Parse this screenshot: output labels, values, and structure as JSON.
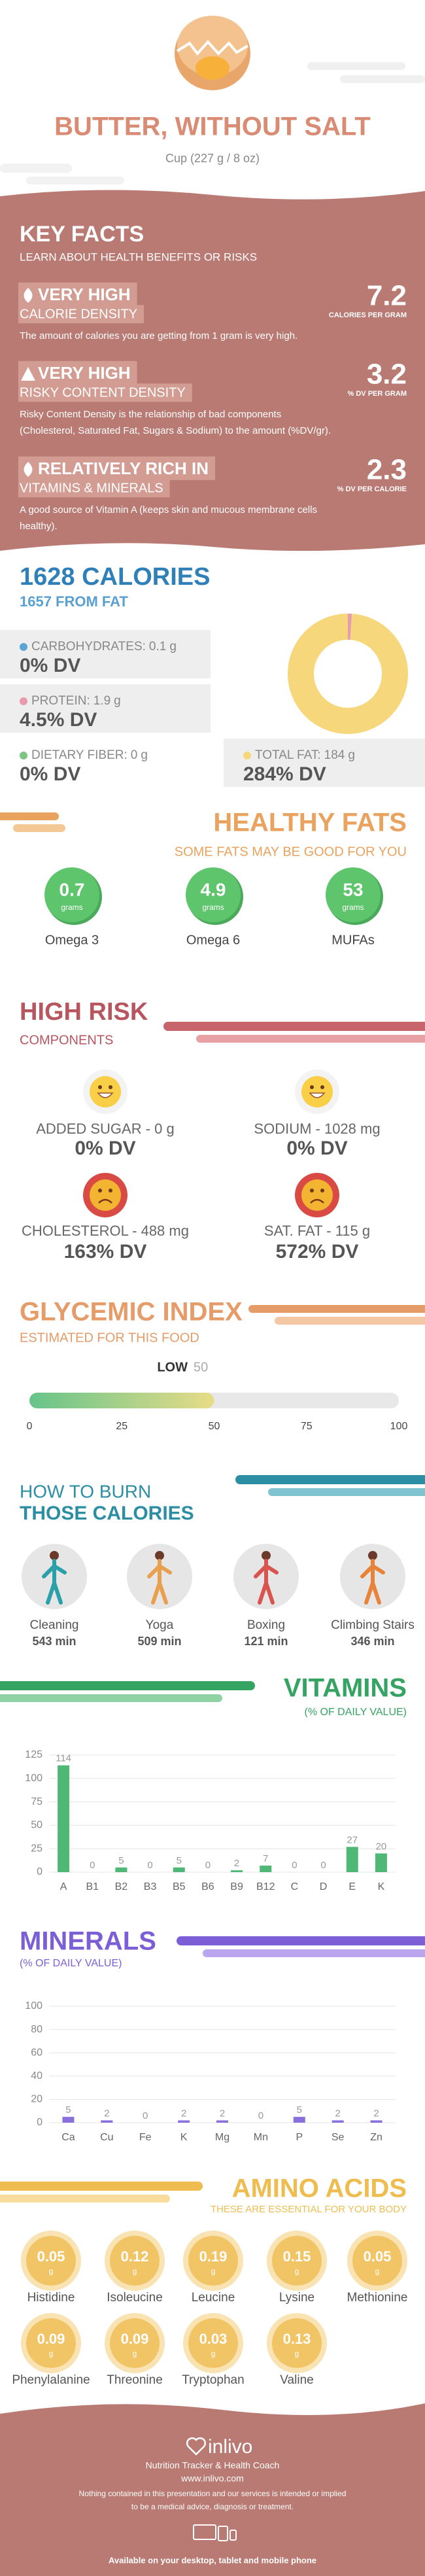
{
  "header": {
    "title": "BUTTER, WITHOUT SALT",
    "serving": "Cup (227 g / 8 oz)"
  },
  "key_facts": {
    "title": "KEY FACTS",
    "subtitle": "LEARN ABOUT HEALTH BENEFITS OR RISKS",
    "facts": [
      {
        "level": "VERY HIGH",
        "name": "CALORIE DENSITY",
        "value": 7.2,
        "unit": "CALORIES PER GRAM",
        "description": [
          "The amount of calories you are getting from 1 gram is very high."
        ]
      },
      {
        "level": "VERY HIGH",
        "name": "RISKY CONTENT DENSITY",
        "value": 3.2,
        "unit": "% DV PER GRAM",
        "description": [
          "Risky Content Density is the relationship of bad components",
          "(Cholesterol, Saturated Fat, Sugars & Sodium) to the amount (%DV/gr)."
        ]
      },
      {
        "level": "RELATIVELY RICH IN",
        "name": "VITAMINS & MINERALS",
        "value": 2.3,
        "unit": "% DV PER CALORIE",
        "description": [
          "A good source of Vitamin A (keeps skin and mucous membrane cells",
          "healthy)."
        ]
      }
    ]
  },
  "calories": {
    "title": "1628 CALORIES",
    "subtitle": "1657 FROM FAT",
    "nutrients": [
      {
        "label": "CARBOHYDRATES:",
        "amount": 0.1,
        "unit": "g",
        "dv": "0% DV",
        "color": "#5ba4d6"
      },
      {
        "label": "PROTEIN:",
        "amount": 1.9,
        "unit": "g",
        "dv": "4.5% DV",
        "color": "#e99aab"
      },
      {
        "label": "DIETARY FIBER:",
        "amount": 0,
        "unit": "g",
        "dv": "0% DV",
        "color": "#7cc582"
      },
      {
        "label": "TOTAL FAT:",
        "amount": 184,
        "unit": "g",
        "dv": "284% DV",
        "color": "#f6d77c"
      }
    ]
  },
  "healthy_fats": {
    "title": "HEALTHY FATS",
    "subtitle": "SOME FATS MAY BE GOOD FOR YOU",
    "items": [
      {
        "name": "Omega 3",
        "value": 0.7,
        "unit": "grams"
      },
      {
        "name": "Omega 6",
        "value": 4.9,
        "unit": "grams"
      },
      {
        "name": "MUFAs",
        "value": 53,
        "unit": "grams"
      }
    ]
  },
  "high_risk": {
    "title": "HIGH RISK",
    "subtitle": "COMPONENTS",
    "items": [
      {
        "name": "ADDED SUGAR - 0 g",
        "dv": "0% DV",
        "risk": "low"
      },
      {
        "name": "SODIUM - 1028 mg",
        "dv": "0% DV",
        "risk": "low"
      },
      {
        "name": "CHOLESTEROL - 488 mg",
        "dv": "163% DV",
        "risk": "high"
      },
      {
        "name": "SAT. FAT - 115 g",
        "dv": "572% DV",
        "risk": "high"
      }
    ]
  },
  "glycemic_index": {
    "title": "GLYCEMIC INDEX",
    "subtitle": "ESTIMATED FOR THIS FOOD",
    "level": "LOW",
    "value": 50,
    "xlim": [
      0,
      100
    ],
    "xticks": [
      0,
      25,
      50,
      75,
      100
    ]
  },
  "burn": {
    "title_lines": [
      "HOW TO BURN",
      "THOSE CALORIES"
    ],
    "activities": [
      {
        "name": "Cleaning",
        "time": "543 min"
      },
      {
        "name": "Yoga",
        "time": "509 min"
      },
      {
        "name": "Boxing",
        "time": "121 min"
      },
      {
        "name": "Climbing Stairs",
        "time": "346 min"
      }
    ]
  },
  "vitamins": {
    "type": "bar",
    "title": "VITAMINS",
    "subtitle": "(% OF DAILY VALUE)",
    "categories": [
      "A",
      "B1",
      "B2",
      "B3",
      "B5",
      "B6",
      "B9",
      "B12",
      "C",
      "D",
      "E",
      "K"
    ],
    "values": [
      114,
      0,
      5,
      0,
      5,
      0,
      2,
      7,
      0,
      0,
      27,
      20
    ],
    "color": "#4fb876",
    "ylim": [
      0,
      125
    ],
    "yticks": [
      0,
      25,
      50,
      75,
      100,
      125
    ],
    "grid": true
  },
  "minerals": {
    "type": "bar",
    "title": "MINERALS",
    "subtitle": "(% OF DAILY VALUE)",
    "categories": [
      "Ca",
      "Cu",
      "Fe",
      "K",
      "Mg",
      "Mn",
      "P",
      "Se",
      "Zn"
    ],
    "values": [
      5,
      2,
      0,
      2,
      2,
      0,
      5,
      2,
      2
    ],
    "color": "#8a70dc",
    "ylim": [
      0,
      100
    ],
    "yticks": [
      0,
      20,
      40,
      60,
      80,
      100
    ],
    "grid": true
  },
  "amino_acids": {
    "title": "AMINO ACIDS",
    "subtitle": "THESE ARE ESSENTIAL FOR YOUR BODY",
    "items": [
      {
        "name": "Histidine",
        "value": 0.05,
        "unit": "g"
      },
      {
        "name": "Isoleucine",
        "value": 0.12,
        "unit": "g"
      },
      {
        "name": "Leucine",
        "value": 0.19,
        "unit": "g"
      },
      {
        "name": "Lysine",
        "value": 0.15,
        "unit": "g"
      },
      {
        "name": "Methionine",
        "value": 0.05,
        "unit": "g"
      },
      {
        "name": "Phenylalanine",
        "value": 0.09,
        "unit": "g"
      },
      {
        "name": "Threonine",
        "value": 0.09,
        "unit": "g"
      },
      {
        "name": "Tryptophan",
        "value": 0.03,
        "unit": "g"
      },
      {
        "name": "Valine",
        "value": 0.13,
        "unit": "g"
      }
    ]
  },
  "footer": {
    "brand": "inlivo",
    "tagline": "Nutrition Tracker & Health Coach",
    "url": "www.inlivo.com",
    "disclaimer": [
      "Nothing contained in this presentation and our services is intended or implied",
      "to be a medical advice, diagnosis or treatment."
    ],
    "availability": "Available on your desktop, tablet and mobile phone"
  }
}
